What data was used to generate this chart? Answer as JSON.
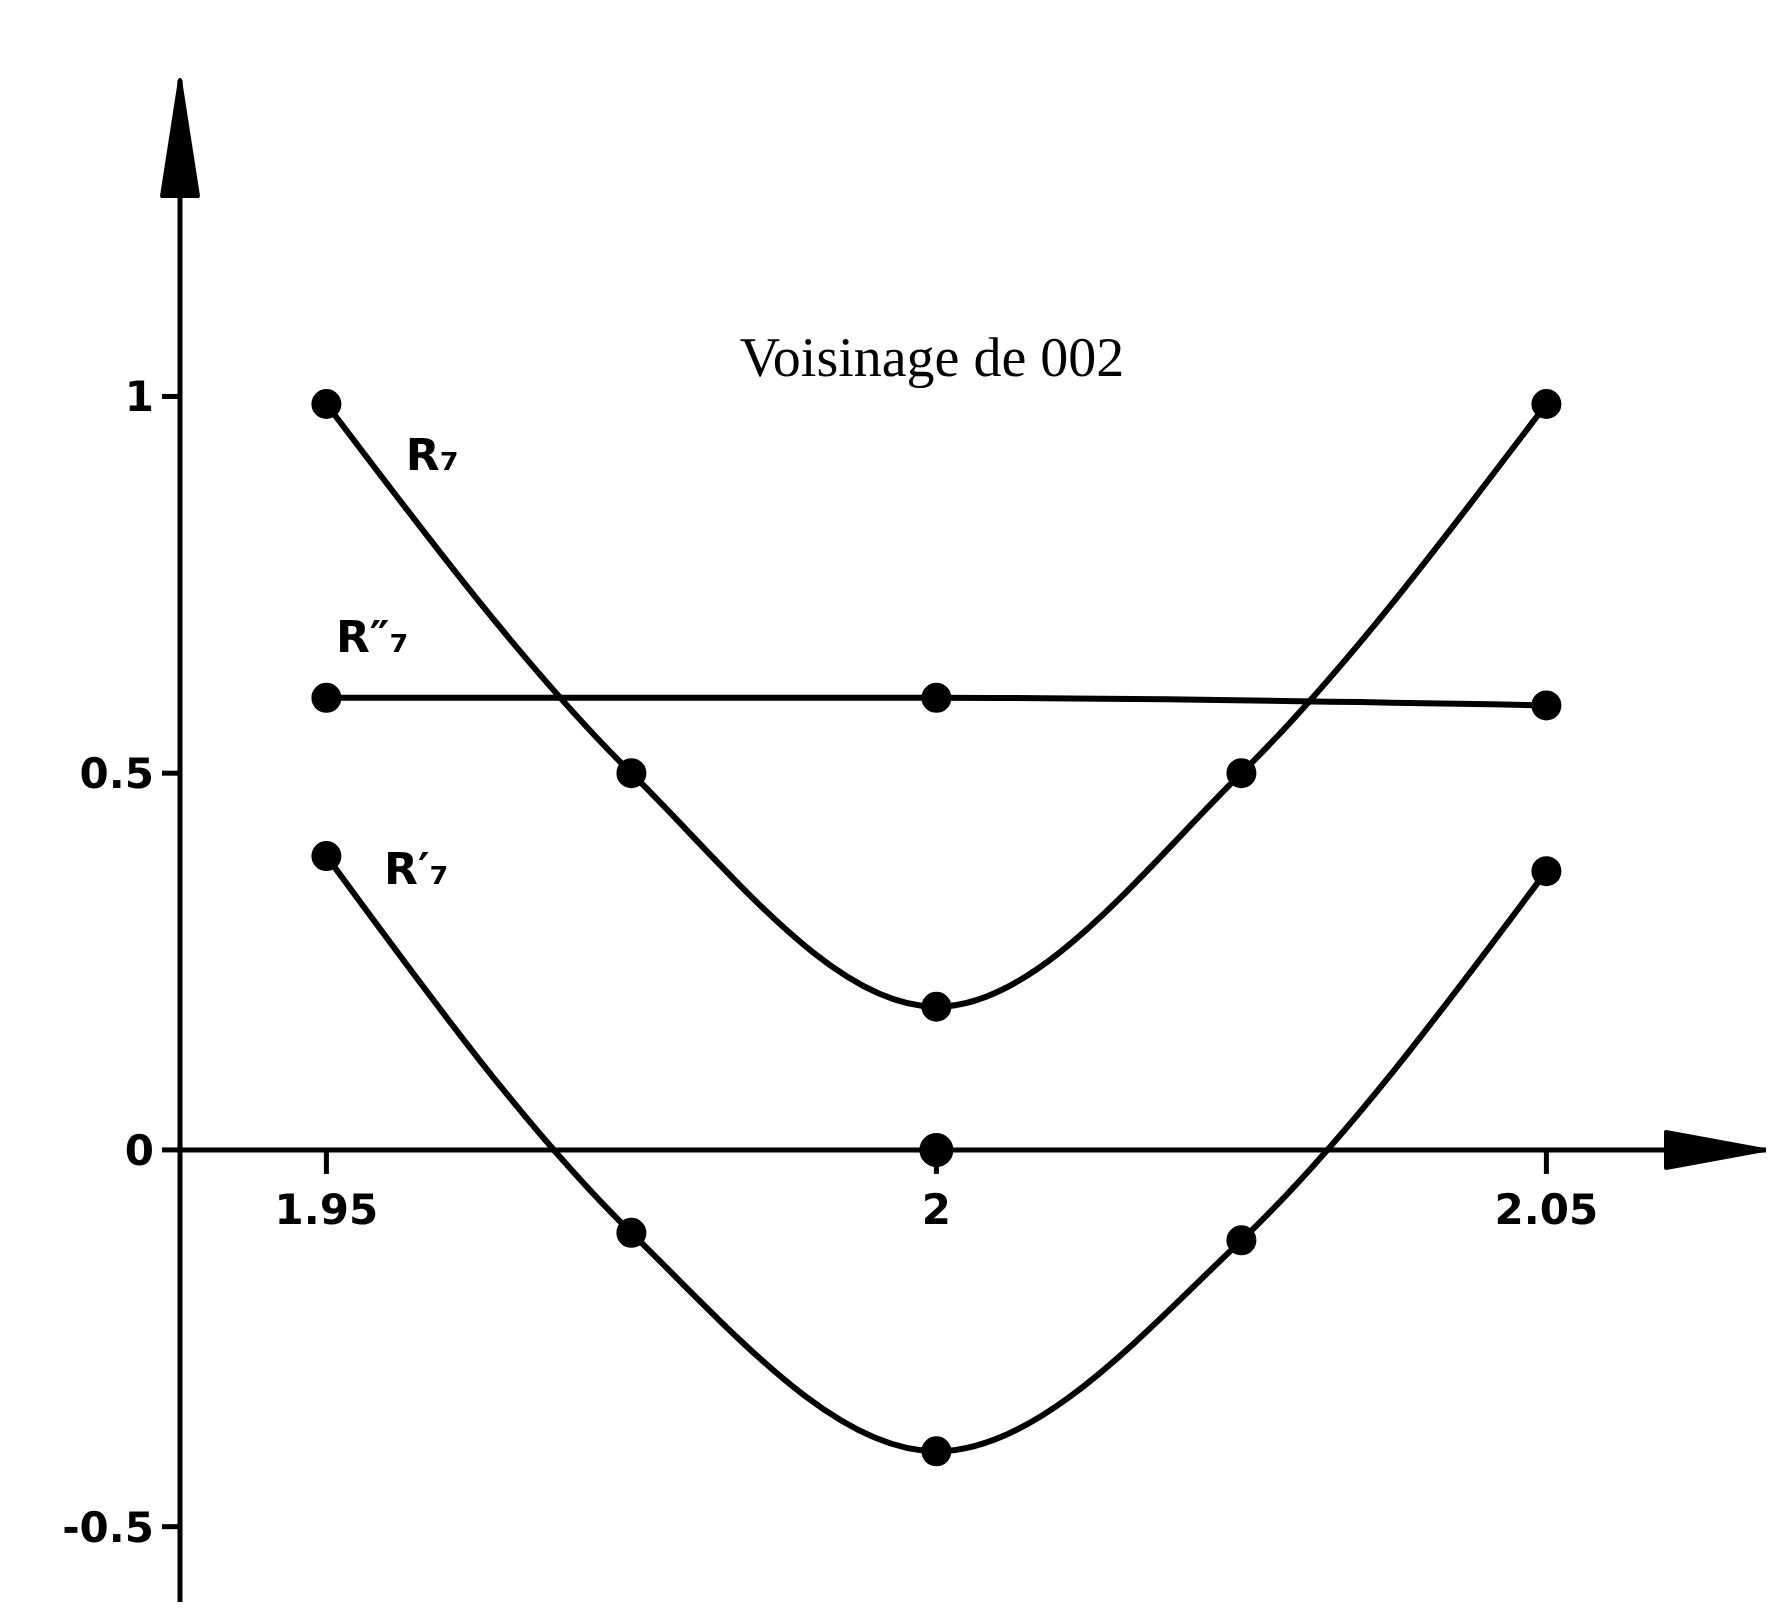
{
  "chart_data": {
    "type": "line",
    "title": "Voisinage de 002",
    "xlim": [
      1.938,
      2.068
    ],
    "xticks": [
      1.95,
      2,
      2.05
    ],
    "ylim": [
      -0.6,
      1.42
    ],
    "yticks": [
      -0.5,
      0,
      0.5,
      1
    ],
    "marker": "circle",
    "line_style": "solid",
    "series": [
      {
        "name": "R₇",
        "color": "#000000",
        "x": [
          1.95,
          1.975,
          2,
          2.025,
          2.05
        ],
        "values": [
          0.99,
          0.5,
          0.19,
          0.5,
          0.99
        ]
      },
      {
        "name": "R″₇",
        "color": "#000000",
        "x": [
          1.95,
          2,
          2.05
        ],
        "values": [
          0.6,
          0.6,
          0.59
        ]
      },
      {
        "name": "R′₇",
        "color": "#000000",
        "x": [
          1.95,
          1.975,
          2,
          2.025,
          2.05
        ],
        "values": [
          0.39,
          -0.11,
          -0.4,
          -0.12,
          0.37
        ]
      },
      {
        "type": "scatter",
        "color": "#000000",
        "x": [
          2
        ],
        "values": [
          0
        ]
      }
    ]
  }
}
